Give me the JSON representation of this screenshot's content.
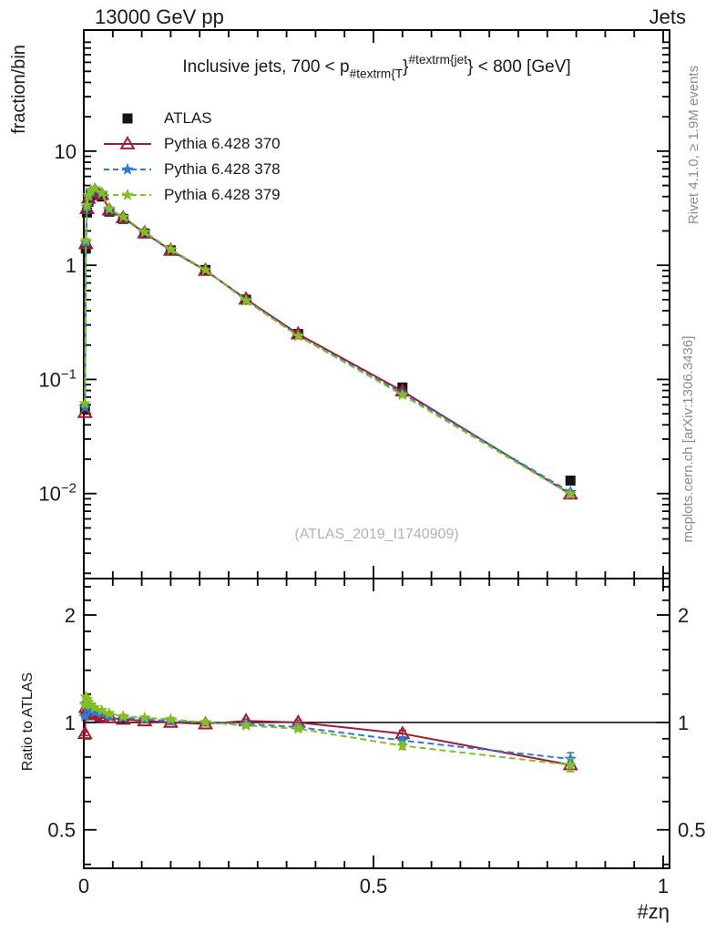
{
  "header": {
    "left": "13000 GeV pp",
    "right": "Jets"
  },
  "title": {
    "prefix": "Inclusive jets, 700 < p",
    "sub": "#textrm{T",
    "brace1": "}",
    "sup": "#textrm{jet",
    "brace2": "}",
    "suffix": " < 800 [GeV]"
  },
  "side_notes": {
    "top_right": "Rivet 4.1.0, ≥ 1.9M events",
    "bottom_right": "mcplots.cern.ch [arXiv:1306.3436]"
  },
  "watermark": "(ATLAS_2019_I1740909)",
  "chart_data": {
    "type": "line",
    "title": "Inclusive jets, 700 < p_{#textrm{T}}^{#textrm{jet}} < 800 [GeV]",
    "xlabel": "#zη",
    "xlim": [
      0,
      1.011
    ],
    "x_minor_step": 0.05,
    "xticks": [
      {
        "v": 0,
        "label": "0"
      },
      {
        "v": 0.5,
        "label": "0.5"
      },
      {
        "v": 1,
        "label": "1"
      }
    ],
    "x": [
      0.002,
      0.0035,
      0.0055,
      0.008,
      0.012,
      0.019,
      0.031,
      0.044,
      0.068,
      0.105,
      0.15,
      0.21,
      0.28,
      0.37,
      0.55,
      0.84
    ],
    "main_panel": {
      "ylabel": "fraction/bin",
      "yscale": "log",
      "ylim": [
        0.0018,
        115
      ],
      "yticks": [
        {
          "v": 10,
          "label": "10"
        },
        {
          "v": 1,
          "label": "1"
        },
        {
          "v": 0.1,
          "label": "10^{−1}"
        },
        {
          "v": 0.01,
          "label": "10^{−2}"
        }
      ]
    },
    "ratio_panel": {
      "ylabel": "Ratio to ATLAS",
      "yscale": "log",
      "ylim": [
        0.39,
        2.53
      ],
      "ref_line": 1,
      "yticks": [
        {
          "v": 2,
          "label": "2"
        },
        {
          "v": 1,
          "label": "1"
        },
        {
          "v": 0.5,
          "label": "0.5"
        }
      ],
      "minor_ticks": [
        0.4,
        0.6,
        0.7,
        0.8,
        0.9,
        1.2,
        1.4,
        1.6,
        1.8,
        2.2,
        2.4
      ]
    },
    "series": [
      {
        "name": "ATLAS",
        "marker": "square",
        "color": "#141414",
        "line": "none",
        "values": [
          0.055,
          1.4,
          2.9,
          3.6,
          4.1,
          4.3,
          4.0,
          2.95,
          2.55,
          1.9,
          1.35,
          0.91,
          0.5,
          0.25,
          0.085,
          0.013
        ]
      },
      {
        "name": "Pythia 6.428 370",
        "marker": "triangle-open",
        "color": "#a11c30",
        "line": "solid",
        "ratio_to_atlas": [
          0.93,
          1.1,
          1.08,
          1.07,
          1.06,
          1.05,
          1.04,
          1.03,
          1.02,
          1.01,
          1.0,
          0.99,
          1.01,
          1.0,
          0.93,
          0.76
        ]
      },
      {
        "name": "Pythia 6.428 378",
        "marker": "star",
        "color": "#2a7bd2",
        "line": "dashed",
        "ratio_to_atlas": [
          1.04,
          1.13,
          1.11,
          1.1,
          1.08,
          1.07,
          1.06,
          1.04,
          1.03,
          1.02,
          1.01,
          1.0,
          0.99,
          0.97,
          0.89,
          0.79
        ]
      },
      {
        "name": "Pythia 6.428 379",
        "marker": "star",
        "color": "#86bd22",
        "line": "dashed",
        "ratio_to_atlas": [
          1.12,
          1.18,
          1.16,
          1.14,
          1.12,
          1.1,
          1.08,
          1.06,
          1.04,
          1.03,
          1.02,
          1.0,
          0.98,
          0.96,
          0.86,
          0.76
        ]
      }
    ],
    "ratio_err": [
      0.012,
      0.012,
      0.012,
      0.012,
      0.012,
      0.012,
      0.012,
      0.012,
      0.012,
      0.012,
      0.012,
      0.012,
      0.012,
      0.015,
      0.02,
      0.032
    ]
  }
}
